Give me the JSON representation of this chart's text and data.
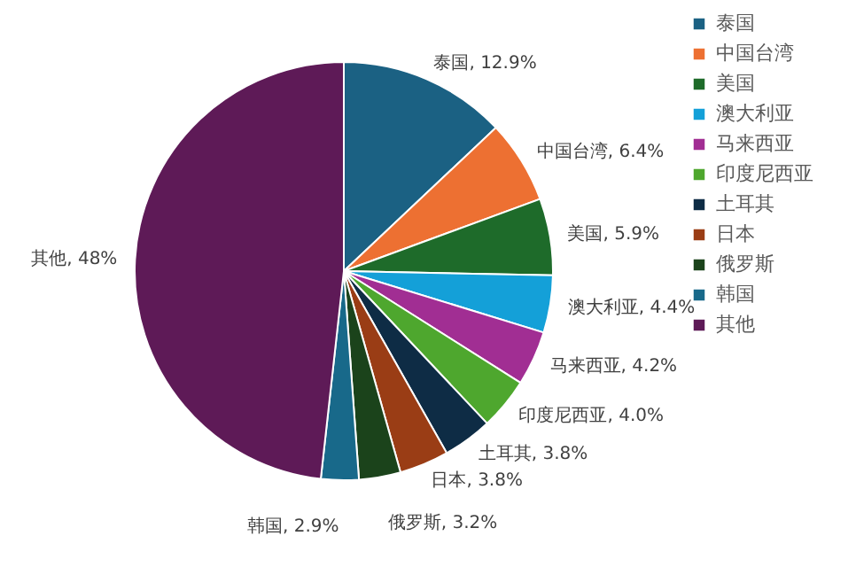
{
  "chart_data": {
    "type": "pie",
    "categories": [
      "泰国",
      "中国台湾",
      "美国",
      "澳大利亚",
      "马来西亚",
      "印度尼西亚",
      "土耳其",
      "日本",
      "俄罗斯",
      "韩国",
      "其他"
    ],
    "values": [
      12.9,
      6.4,
      5.9,
      4.4,
      4.2,
      4.0,
      3.8,
      3.8,
      3.2,
      2.9,
      48
    ],
    "colors": [
      "#1b6183",
      "#ed7032",
      "#1e6b2a",
      "#14a0d8",
      "#a12e93",
      "#4ea72e",
      "#0e2c45",
      "#9a3d15",
      "#1b431b",
      "#18698a",
      "#5e1a57"
    ],
    "value_labels": [
      "泰国, 12.9%",
      "中国台湾, 6.4%",
      "美国, 5.9%",
      "澳大利亚, 4.4%",
      "马来西亚, 4.2%",
      "印度尼西亚, 4.0%",
      "土耳其, 3.8%",
      "日本, 3.8%",
      "俄罗斯, 3.2%",
      "韩国, 2.9%",
      "其他, 48%"
    ],
    "legend": "right"
  }
}
